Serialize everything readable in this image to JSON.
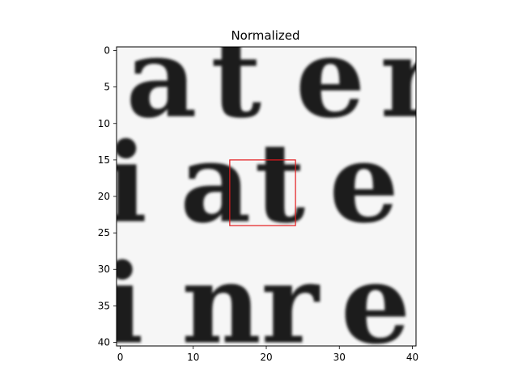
{
  "chart_data": {
    "type": "heatmap",
    "title": "Normalized",
    "colormap": "gray",
    "xlim": [
      -0.5,
      40.5
    ],
    "ylim": [
      40.5,
      -0.5
    ],
    "x_ticks": [
      0,
      10,
      20,
      30,
      40
    ],
    "y_ticks": [
      0,
      5,
      10,
      15,
      20,
      25,
      30,
      35,
      40
    ],
    "grid": false,
    "highlight_box": {
      "x0": 15,
      "x1": 24,
      "y0": 15,
      "y1": 24,
      "color": "#e41a1c"
    },
    "text_rows": [
      {
        "text": "ater",
        "baseline_y": 9,
        "x_start": 0.8,
        "dx": 11.6
      },
      {
        "text": "iate",
        "baseline_y": 23.4,
        "x_start": -2,
        "dx": 10.2
      },
      {
        "text": "inre",
        "baseline_y": 40,
        "x_start": -2.5,
        "dx": 10.9
      }
    ],
    "background_value": 0.97
  }
}
